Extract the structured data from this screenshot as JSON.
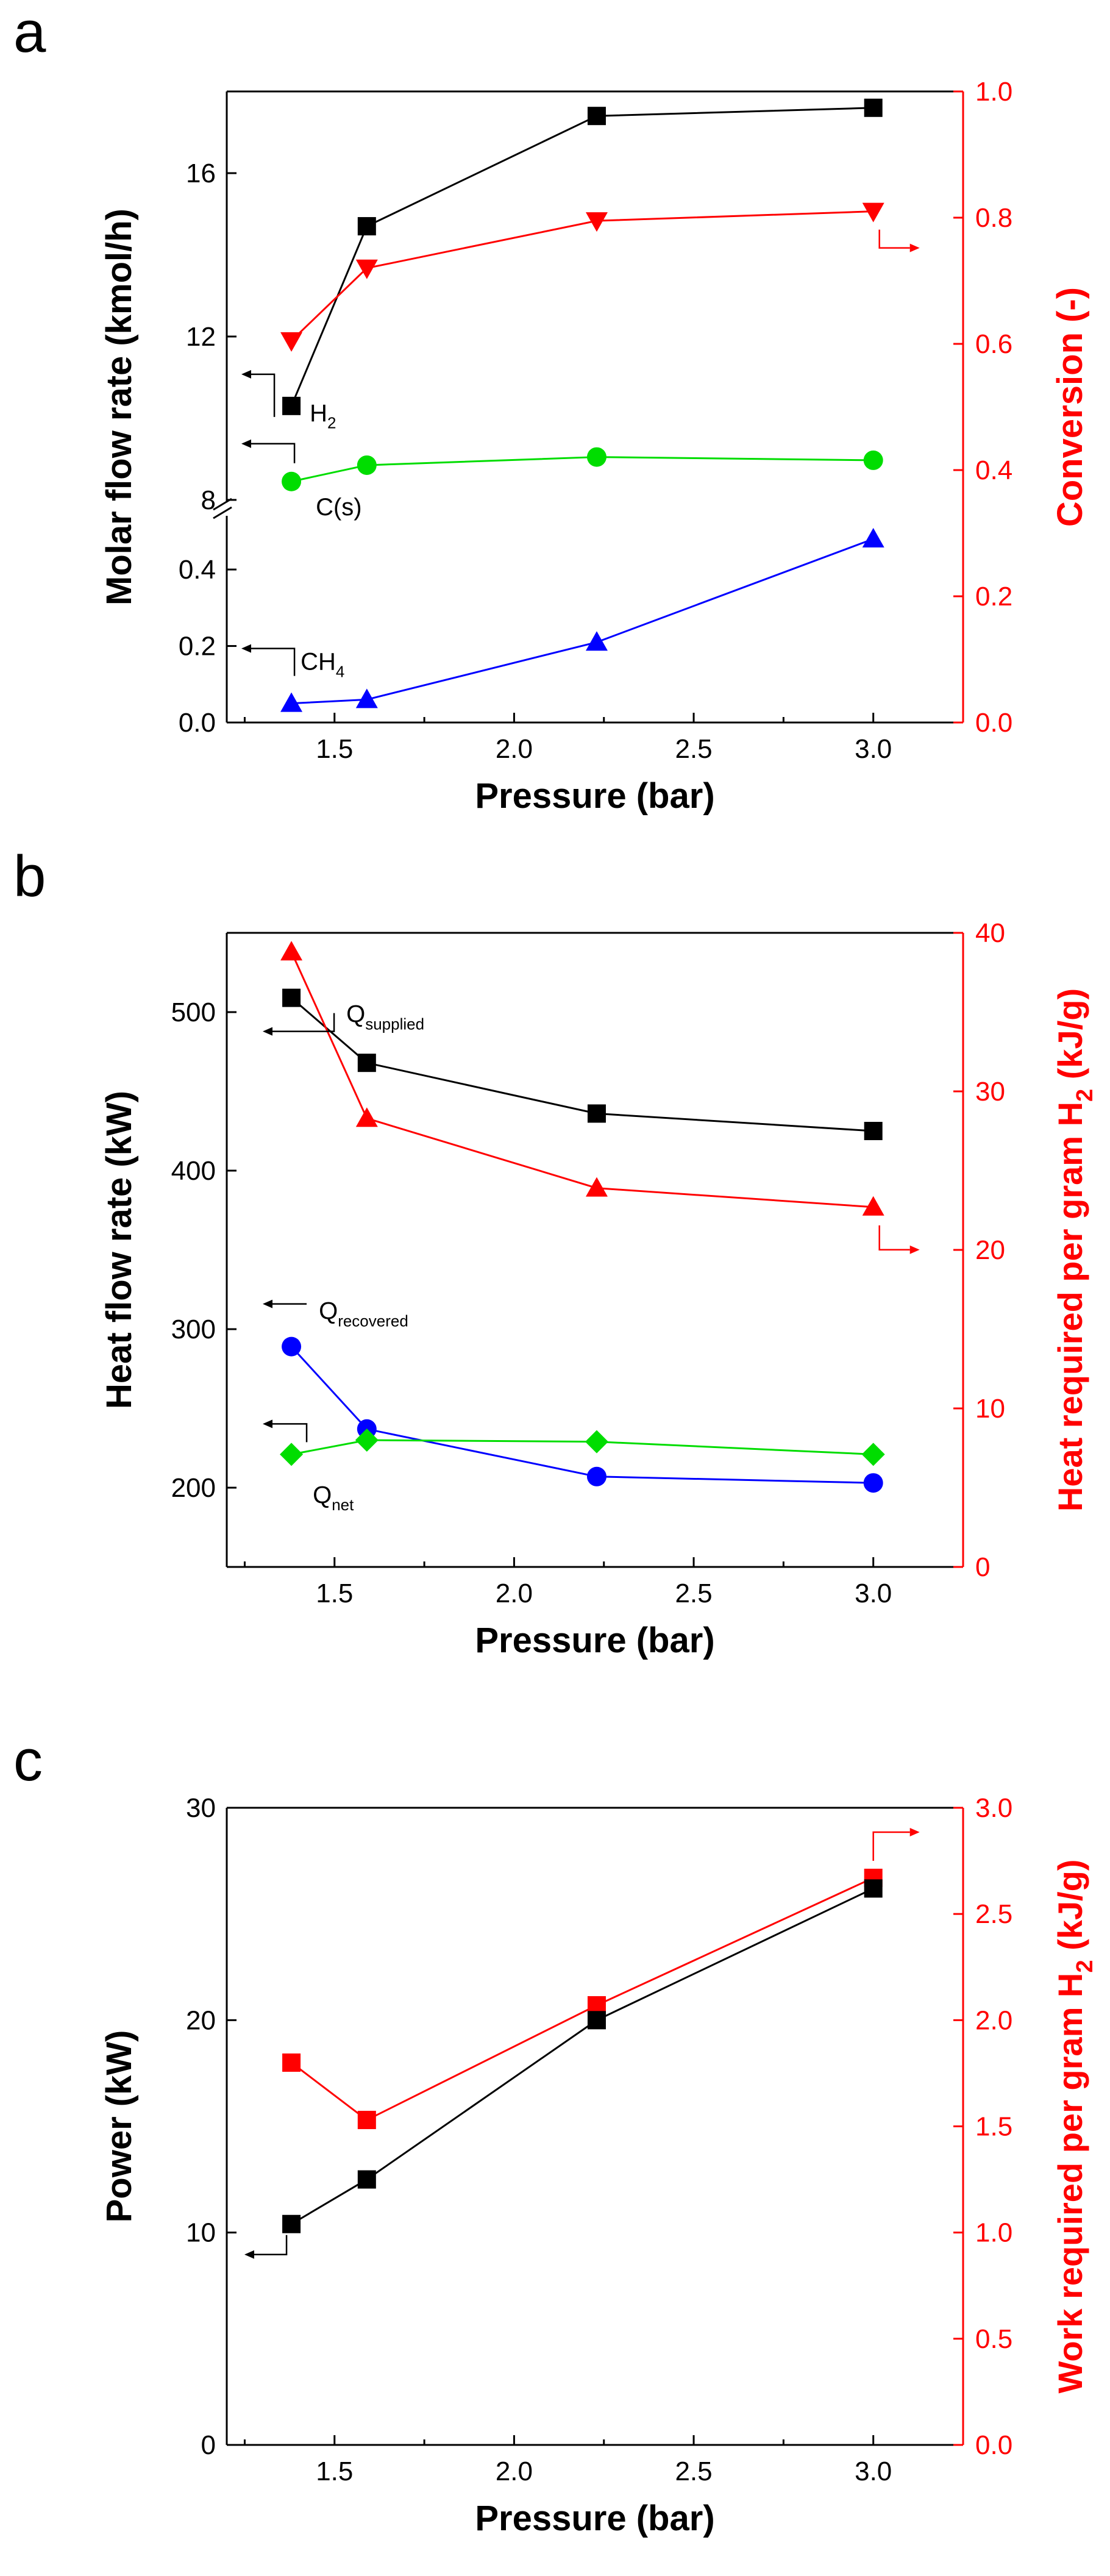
{
  "chart_data": [
    {
      "type": "line",
      "panel_label": "a",
      "xlabel": "Pressure (bar)",
      "ylabel_left": "Molar flow rate (kmol/h)",
      "ylabel_right": "Conversion (-)",
      "x_ticks": [
        "1.5",
        "2.0",
        "2.5",
        "3.0"
      ],
      "y_left_upper_ticks": [
        "8",
        "12",
        "16"
      ],
      "y_left_lower_ticks": [
        "0.0",
        "0.2",
        "0.4"
      ],
      "y_right_ticks": [
        "0.0",
        "0.2",
        "0.4",
        "0.6",
        "0.8",
        "1.0"
      ],
      "xlim": [
        1.2,
        3.25
      ],
      "y_left_upper_range": [
        7.7,
        18.0
      ],
      "y_left_lower_range": [
        0.0,
        0.55
      ],
      "y_right_range": [
        0.0,
        1.0
      ],
      "axis_break": "//",
      "x": [
        1.38,
        1.59,
        2.23,
        3.0
      ],
      "series": [
        {
          "name": "H2",
          "label_main": "H",
          "label_sub": "2",
          "axis": "left-upper",
          "marker": "square",
          "color": "#000000",
          "values": [
            10.3,
            14.7,
            17.4,
            17.6
          ]
        },
        {
          "name": "C(s)",
          "label_main": "C(s)",
          "label_sub": "",
          "axis": "left-upper",
          "marker": "circle",
          "color": "#00dd00",
          "values": [
            8.45,
            8.85,
            9.05,
            8.97
          ]
        },
        {
          "name": "CH4",
          "label_main": "CH",
          "label_sub": "4",
          "axis": "left-lower",
          "marker": "triangle-up",
          "color": "#0000ff",
          "values": [
            0.05,
            0.06,
            0.21,
            0.48
          ]
        },
        {
          "name": "Conversion",
          "label_main": "",
          "label_sub": "",
          "axis": "right",
          "marker": "triangle-down",
          "color": "#ff0000",
          "values": [
            0.605,
            0.72,
            0.795,
            0.81
          ]
        }
      ]
    },
    {
      "type": "line",
      "panel_label": "b",
      "xlabel": "Pressure (bar)",
      "ylabel_left": "Heat flow rate (kW)",
      "ylabel_right_main": "Heat required per gram H",
      "ylabel_right_sub": "2",
      "ylabel_right_tail": " (kJ/g)",
      "x_ticks": [
        "1.5",
        "2.0",
        "2.5",
        "3.0"
      ],
      "y_left_ticks": [
        "200",
        "300",
        "400",
        "500"
      ],
      "y_right_ticks": [
        "0",
        "10",
        "20",
        "30",
        "40"
      ],
      "xlim": [
        1.2,
        3.25
      ],
      "y_left_range": [
        150,
        550
      ],
      "y_right_range": [
        0,
        40
      ],
      "x": [
        1.38,
        1.59,
        2.23,
        3.0
      ],
      "series": [
        {
          "name": "Q_supplied",
          "label_main": "Q",
          "label_sub": "supplied",
          "axis": "left",
          "marker": "square",
          "color": "#000000",
          "values": [
            509,
            468,
            436,
            425
          ]
        },
        {
          "name": "Q_recovered",
          "label_main": "Q",
          "label_sub": "recovered",
          "axis": "left",
          "marker": "circle",
          "color": "#0000ff",
          "values": [
            289,
            237,
            207,
            203
          ]
        },
        {
          "name": "Q_net",
          "label_main": "Q",
          "label_sub": "net",
          "axis": "left",
          "marker": "diamond",
          "color": "#00dd00",
          "values": [
            221,
            230,
            229,
            221
          ]
        },
        {
          "name": "Heat required per gram H2",
          "label_main": "",
          "label_sub": "",
          "axis": "right",
          "marker": "triangle-up",
          "color": "#ff0000",
          "values": [
            38.8,
            28.3,
            23.9,
            22.7
          ]
        }
      ]
    },
    {
      "type": "line",
      "panel_label": "c",
      "xlabel": "Pressure (bar)",
      "ylabel_left": "Power (kW)",
      "ylabel_right_main": "Work required per gram H",
      "ylabel_right_sub": "2",
      "ylabel_right_tail": " (kJ/g)",
      "x_ticks": [
        "1.5",
        "2.0",
        "2.5",
        "3.0"
      ],
      "y_left_ticks": [
        "0",
        "10",
        "20",
        "30"
      ],
      "y_right_ticks": [
        "0.0",
        "0.5",
        "1.0",
        "1.5",
        "2.0",
        "2.5",
        "3.0"
      ],
      "xlim": [
        1.2,
        3.25
      ],
      "y_left_range": [
        0,
        30
      ],
      "y_right_range": [
        0,
        3.0
      ],
      "x": [
        1.38,
        1.59,
        2.23,
        3.0
      ],
      "series": [
        {
          "name": "Power",
          "axis": "left",
          "marker": "square",
          "color": "#000000",
          "values": [
            10.4,
            12.5,
            20.0,
            26.2
          ]
        },
        {
          "name": "Work required per gram H2",
          "axis": "right",
          "marker": "square",
          "color": "#ff0000",
          "values": [
            1.8,
            1.53,
            2.07,
            2.67
          ]
        }
      ]
    }
  ]
}
